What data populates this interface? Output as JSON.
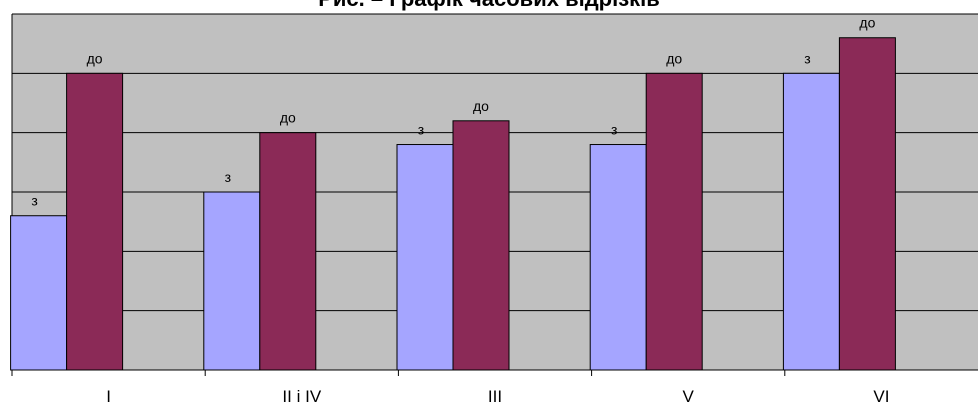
{
  "chart_data": {
    "type": "bar",
    "title": "Рис. – Графік часових відрізків",
    "xlabel": "",
    "ylabel": "",
    "categories": [
      "I",
      "II  i IV",
      "III",
      "V",
      "VI"
    ],
    "series": [
      {
        "label": "з",
        "color": "#a5a5ff",
        "values": [
          2.6,
          3.0,
          3.8,
          3.8,
          5.0
        ]
      },
      {
        "label": "до",
        "color": "#8b2a57",
        "values": [
          5.0,
          4.0,
          4.2,
          5.0,
          5.6
        ]
      }
    ],
    "ylim": [
      0,
      6
    ],
    "y_ticks": [
      0,
      1,
      2,
      3,
      4,
      5,
      6
    ],
    "grid": true,
    "plot_background": "#c0c0c0"
  }
}
